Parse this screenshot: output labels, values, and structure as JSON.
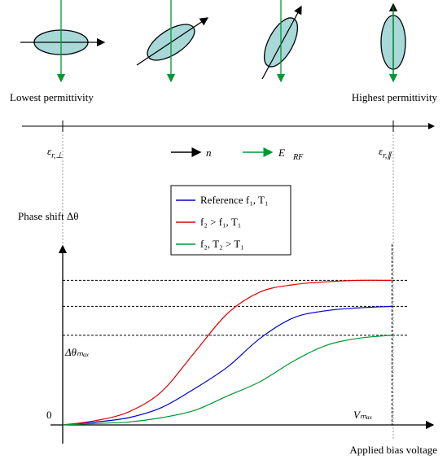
{
  "diagram": {
    "low_label": "Lowest permittivity",
    "high_label": "Highest permittivity",
    "eps_perp": {
      "main": "ε",
      "sub": "r,⊥"
    },
    "eps_par": {
      "main": "ε",
      "sub": "r,∥"
    },
    "n_label": "n⃗",
    "e_label": {
      "main": "E⃗",
      "sub": "RF"
    }
  },
  "chart_data": {
    "type": "line",
    "ylabel": "Phase shift Δθ",
    "xlabel": "Applied bias voltage",
    "origin_label": "0",
    "dtheta_label": "Δθₘₐₓ",
    "vmax_label": "Vₘₐₓ",
    "x": [
      0,
      0.1,
      0.2,
      0.3,
      0.4,
      0.5,
      0.6,
      0.7,
      0.8,
      0.9,
      1.0
    ],
    "series": [
      {
        "name": "Reference f₁, T₁",
        "color": "#0000cc",
        "values": [
          0,
          0.02,
          0.05,
          0.12,
          0.25,
          0.4,
          0.6,
          0.74,
          0.79,
          0.81,
          0.82
        ]
      },
      {
        "name": "f₂ > f₁,  T₁",
        "color": "#e00000",
        "values": [
          0,
          0.03,
          0.09,
          0.23,
          0.5,
          0.77,
          0.92,
          0.97,
          0.99,
          1.0,
          1.0
        ]
      },
      {
        "name": "f₂,  T₂ > T₁",
        "color": "#009933",
        "values": [
          0,
          0.01,
          0.02,
          0.05,
          0.1,
          0.2,
          0.3,
          0.44,
          0.55,
          0.6,
          0.62
        ]
      }
    ],
    "hlines": [
      1.0,
      0.82,
      0.62
    ],
    "vmax": 1.0,
    "xlim": [
      0,
      1.12
    ],
    "ylim": [
      0,
      1.25
    ]
  }
}
